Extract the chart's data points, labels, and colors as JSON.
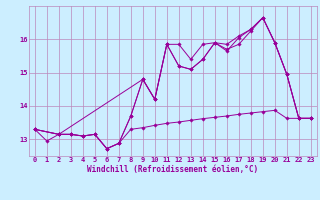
{
  "xlabel": "Windchill (Refroidissement éolien,°C)",
  "ylabel": "",
  "bg_color": "#cceeff",
  "grid_color": "#bb88bb",
  "line_color": "#990099",
  "xlim": [
    -0.5,
    23.5
  ],
  "ylim": [
    12.5,
    17.0
  ],
  "xticks": [
    0,
    1,
    2,
    3,
    4,
    5,
    6,
    7,
    8,
    9,
    10,
    11,
    12,
    13,
    14,
    15,
    16,
    17,
    18,
    19,
    20,
    21,
    22,
    23
  ],
  "yticks": [
    13,
    14,
    15,
    16
  ],
  "series": [
    {
      "x": [
        0,
        1,
        2,
        3,
        4,
        5,
        6,
        7,
        8,
        9,
        10,
        11,
        12,
        13,
        14,
        15,
        16,
        17,
        18,
        19,
        20,
        21,
        22,
        23
      ],
      "y": [
        13.3,
        12.95,
        13.15,
        13.15,
        13.1,
        13.15,
        12.72,
        12.88,
        13.3,
        13.35,
        13.42,
        13.48,
        13.52,
        13.57,
        13.62,
        13.66,
        13.7,
        13.75,
        13.79,
        13.83,
        13.87,
        13.63,
        13.63,
        13.63
      ]
    },
    {
      "x": [
        0,
        2,
        3,
        4,
        5,
        6,
        7,
        8,
        9,
        10,
        11,
        12,
        13,
        14,
        15,
        16,
        17,
        18,
        19,
        20,
        21,
        22,
        23
      ],
      "y": [
        13.3,
        13.15,
        13.15,
        13.1,
        13.15,
        12.72,
        12.88,
        13.7,
        14.8,
        14.2,
        15.85,
        15.85,
        15.4,
        15.85,
        15.9,
        15.7,
        15.85,
        16.25,
        16.65,
        15.9,
        14.95,
        13.63,
        13.63
      ]
    },
    {
      "x": [
        0,
        2,
        3,
        4,
        5,
        6,
        7,
        8,
        9,
        10,
        11,
        12,
        13,
        14,
        15,
        16,
        17,
        18,
        19,
        20,
        21,
        22,
        23
      ],
      "y": [
        13.3,
        13.15,
        13.15,
        13.1,
        13.15,
        12.72,
        12.88,
        13.7,
        14.8,
        14.2,
        15.85,
        15.2,
        15.1,
        15.4,
        15.9,
        15.85,
        16.1,
        16.3,
        16.65,
        15.9,
        14.95,
        13.63,
        13.63
      ]
    },
    {
      "x": [
        0,
        2,
        9,
        10,
        11,
        12,
        13,
        14,
        15,
        16,
        17,
        18,
        19,
        20,
        21,
        22,
        23
      ],
      "y": [
        13.3,
        13.15,
        14.8,
        14.2,
        15.85,
        15.2,
        15.1,
        15.4,
        15.9,
        15.65,
        16.05,
        16.3,
        16.65,
        15.9,
        14.95,
        13.63,
        13.63
      ]
    }
  ]
}
